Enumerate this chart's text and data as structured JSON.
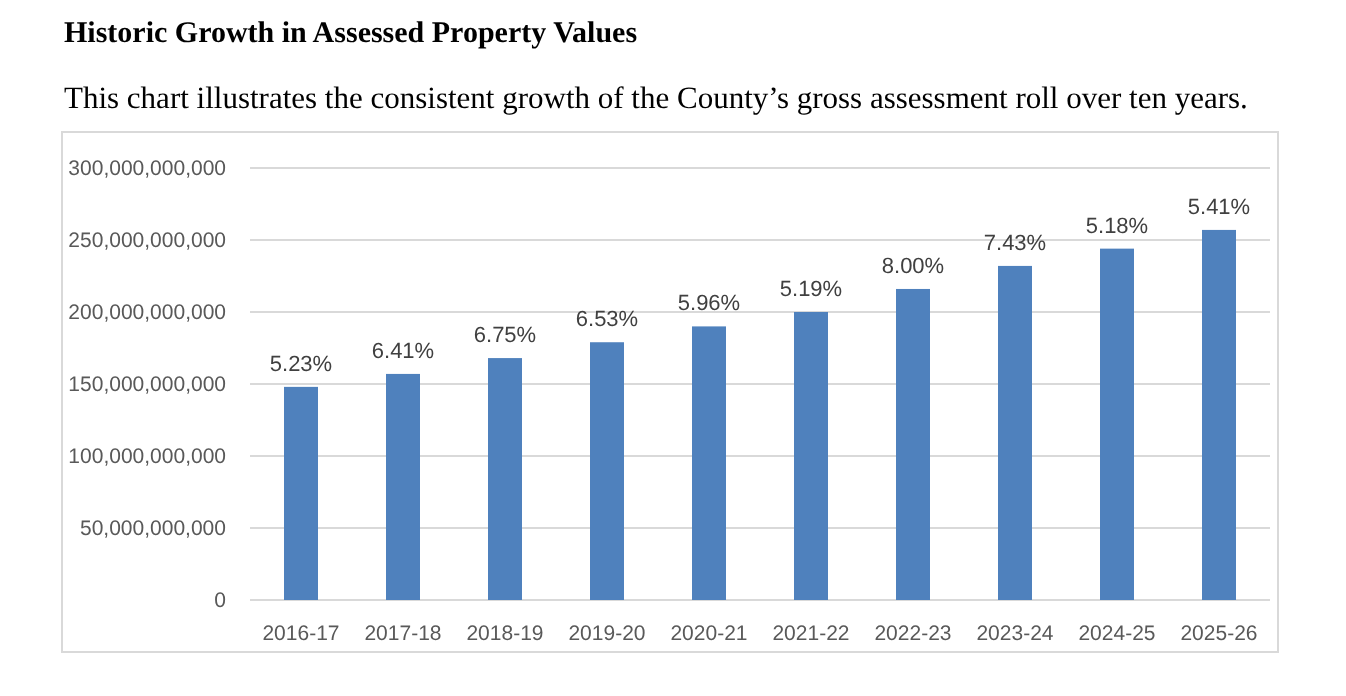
{
  "chart_data": {
    "type": "bar",
    "title": "Historic Growth in Assessed Property Values",
    "subtitle": "This chart illustrates the consistent growth of the County’s gross assessment roll over ten years.",
    "categories": [
      "2016-17",
      "2017-18",
      "2018-19",
      "2019-20",
      "2020-21",
      "2021-22",
      "2022-23",
      "2023-24",
      "2024-25",
      "2025-26"
    ],
    "values": [
      148000000000,
      157000000000,
      168000000000,
      179000000000,
      190000000000,
      200000000000,
      216000000000,
      232000000000,
      244000000000,
      257000000000
    ],
    "annotations": [
      {
        "text": "5.23%",
        "x": "2016-17",
        "y": 148000000000
      },
      {
        "text": "6.41%",
        "x": "2017-18",
        "y": 157000000000
      },
      {
        "text": "6.75%",
        "x": "2018-19",
        "y": 168000000000
      },
      {
        "text": "6.53%",
        "x": "2019-20",
        "y": 179000000000
      },
      {
        "text": "5.96%",
        "x": "2020-21",
        "y": 190000000000
      },
      {
        "text": "5.19%",
        "x": "2021-22",
        "y": 200000000000
      },
      {
        "text": "8.00%",
        "x": "2022-23",
        "y": 216000000000
      },
      {
        "text": "7.43%",
        "x": "2023-24",
        "y": 232000000000
      },
      {
        "text": "5.18%",
        "x": "2024-25",
        "y": 244000000000
      },
      {
        "text": "5.41%",
        "x": "2025-26",
        "y": 257000000000
      }
    ],
    "color": "#4f81bd",
    "ylim": [
      0,
      300000000000
    ],
    "yticks": [
      {
        "value": 0,
        "label": "0"
      },
      {
        "value": 50000000000,
        "label": "50,000,000,000"
      },
      {
        "value": 100000000000,
        "label": "100,000,000,000"
      },
      {
        "value": 150000000000,
        "label": "150,000,000,000"
      },
      {
        "value": 200000000000,
        "label": "200,000,000,000"
      },
      {
        "value": 250000000000,
        "label": "250,000,000,000"
      },
      {
        "value": 300000000000,
        "label": "300,000,000,000"
      }
    ],
    "grid": "y"
  }
}
